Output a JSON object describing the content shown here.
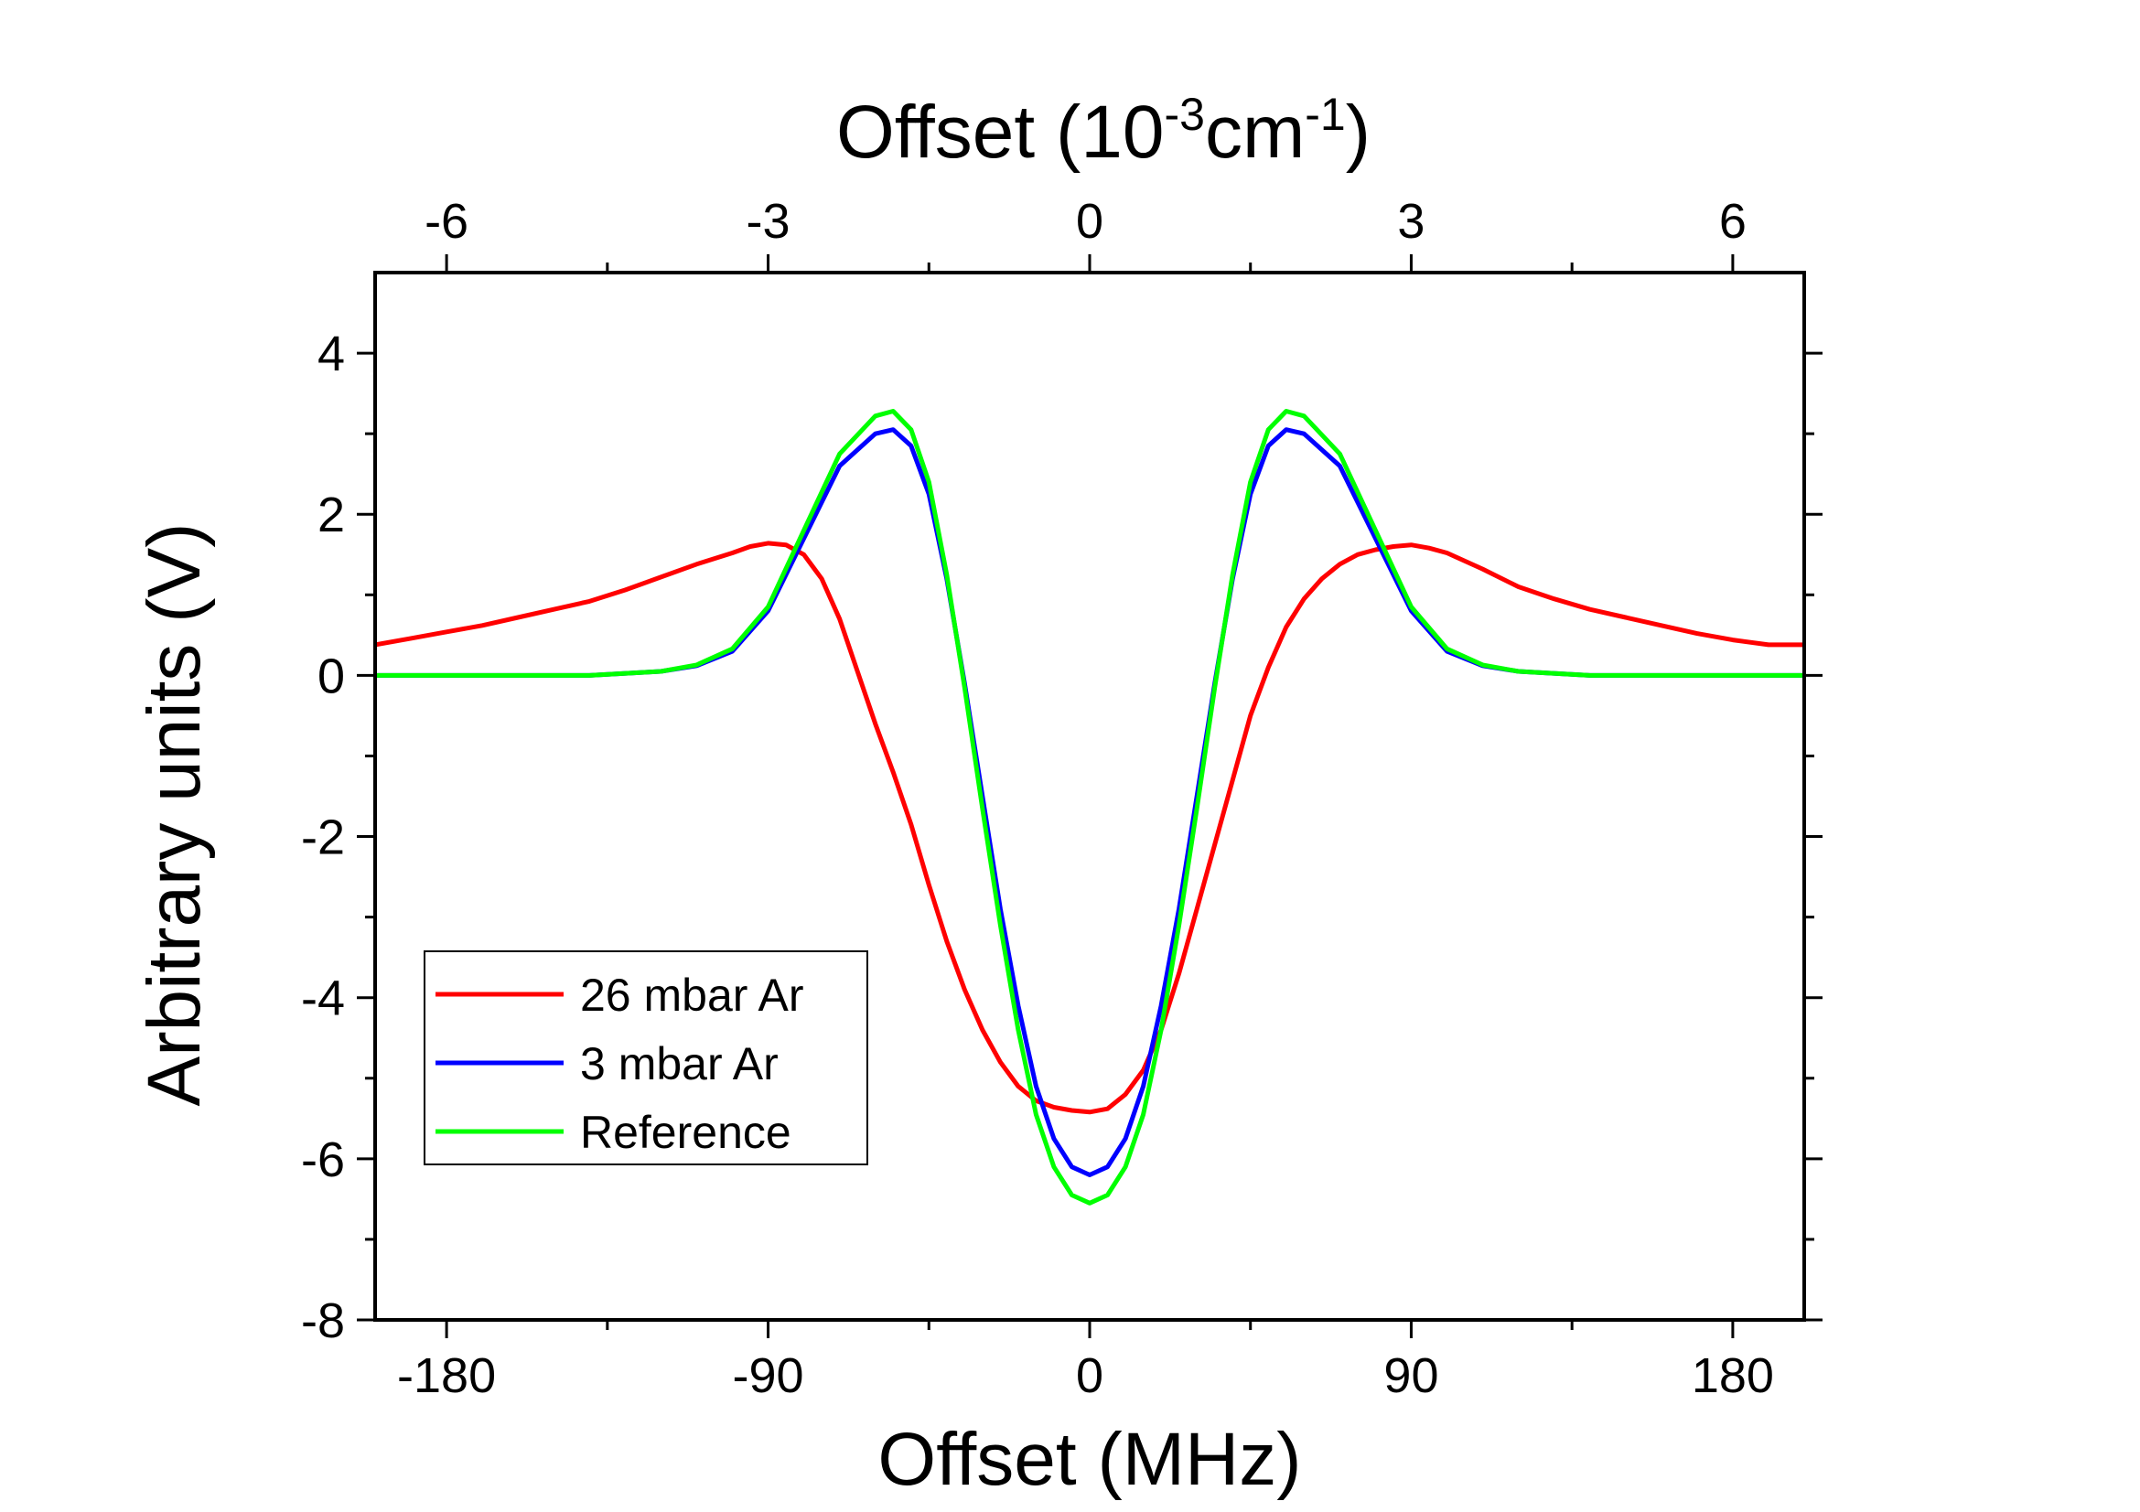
{
  "chart_data": {
    "type": "line",
    "xlabel": "Offset (MHz)",
    "top_xlabel": {
      "base": "Offset (10",
      "exp1": "-3",
      "mid": "cm",
      "exp2": "-1",
      "close": ")"
    },
    "ylabel": "Arbitrary units (V)",
    "xlim": [
      -200,
      200
    ],
    "ylim": [
      -8,
      5
    ],
    "x_ticks": [
      -180,
      -90,
      0,
      90,
      180
    ],
    "x_tick_labels": [
      "-180",
      "-90",
      "0",
      "90",
      "180"
    ],
    "x_minor_ticks": [
      -135,
      -45,
      45,
      135
    ],
    "top_x_ticks": [
      -6,
      -3,
      0,
      3,
      6
    ],
    "top_x_tick_labels": [
      "-6",
      "-3",
      "0",
      "3",
      "6"
    ],
    "top_x_minor_ticks": [
      -4.5,
      -1.5,
      1.5,
      4.5
    ],
    "y_ticks": [
      -8,
      -6,
      -4,
      -2,
      0,
      2,
      4
    ],
    "y_tick_labels": [
      "-8",
      "-6",
      "-4",
      "-2",
      "0",
      "2",
      "4"
    ],
    "y_minor_ticks": [
      -7,
      -5,
      -3,
      -1,
      1,
      3
    ],
    "legend_position": "bottom-left",
    "series": [
      {
        "name": "26 mbar Ar",
        "color": "#ff0000",
        "x": [
          -200,
          -190,
          -180,
          -170,
          -160,
          -150,
          -140,
          -130,
          -120,
          -110,
          -100,
          -95,
          -90,
          -85,
          -80,
          -75,
          -70,
          -65,
          -60,
          -55,
          -50,
          -45,
          -40,
          -35,
          -30,
          -25,
          -20,
          -15,
          -10,
          -5,
          0,
          5,
          10,
          15,
          20,
          25,
          30,
          35,
          40,
          45,
          50,
          55,
          60,
          65,
          70,
          75,
          80,
          85,
          90,
          95,
          100,
          110,
          120,
          130,
          140,
          150,
          160,
          170,
          180,
          190,
          200
        ],
        "y": [
          0.38,
          0.46,
          0.54,
          0.62,
          0.72,
          0.82,
          0.92,
          1.06,
          1.22,
          1.38,
          1.52,
          1.6,
          1.64,
          1.62,
          1.5,
          1.2,
          0.7,
          0.05,
          -0.6,
          -1.2,
          -1.85,
          -2.6,
          -3.3,
          -3.9,
          -4.4,
          -4.8,
          -5.1,
          -5.28,
          -5.36,
          -5.4,
          -5.42,
          -5.38,
          -5.2,
          -4.9,
          -4.4,
          -3.7,
          -2.9,
          -2.1,
          -1.3,
          -0.5,
          0.1,
          0.6,
          0.95,
          1.2,
          1.38,
          1.5,
          1.56,
          1.6,
          1.62,
          1.58,
          1.52,
          1.32,
          1.1,
          0.95,
          0.82,
          0.72,
          0.62,
          0.52,
          0.44,
          0.38,
          0.38
        ]
      },
      {
        "name": "3 mbar Ar",
        "color": "#0000ff",
        "x": [
          -200,
          -160,
          -140,
          -120,
          -110,
          -100,
          -90,
          -80,
          -70,
          -60,
          -55,
          -50,
          -45,
          -40,
          -35,
          -30,
          -25,
          -20,
          -15,
          -10,
          -5,
          0,
          5,
          10,
          15,
          20,
          25,
          30,
          35,
          40,
          45,
          50,
          55,
          60,
          70,
          80,
          90,
          100,
          110,
          120,
          140,
          160,
          200
        ],
        "y": [
          0,
          0,
          0,
          0.05,
          0.12,
          0.3,
          0.8,
          1.7,
          2.6,
          3.0,
          3.05,
          2.85,
          2.25,
          1.2,
          -0.1,
          -1.5,
          -2.9,
          -4.1,
          -5.1,
          -5.75,
          -6.1,
          -6.2,
          -6.1,
          -5.75,
          -5.1,
          -4.1,
          -2.9,
          -1.5,
          -0.1,
          1.2,
          2.25,
          2.85,
          3.05,
          3.0,
          2.6,
          1.7,
          0.8,
          0.3,
          0.12,
          0.05,
          0,
          0,
          0
        ]
      },
      {
        "name": "Reference",
        "color": "#00ff00",
        "x": [
          -200,
          -160,
          -140,
          -120,
          -110,
          -100,
          -90,
          -80,
          -70,
          -60,
          -55,
          -50,
          -45,
          -40,
          -35,
          -30,
          -25,
          -20,
          -15,
          -10,
          -5,
          0,
          5,
          10,
          15,
          20,
          25,
          30,
          35,
          40,
          45,
          50,
          55,
          60,
          70,
          80,
          90,
          100,
          110,
          120,
          140,
          160,
          200
        ],
        "y": [
          0,
          0,
          0,
          0.05,
          0.13,
          0.33,
          0.85,
          1.8,
          2.75,
          3.22,
          3.28,
          3.05,
          2.4,
          1.25,
          -0.15,
          -1.65,
          -3.1,
          -4.4,
          -5.45,
          -6.1,
          -6.45,
          -6.55,
          -6.45,
          -6.1,
          -5.45,
          -4.4,
          -3.1,
          -1.65,
          -0.15,
          1.25,
          2.4,
          3.05,
          3.28,
          3.22,
          2.75,
          1.8,
          0.85,
          0.33,
          0.13,
          0.05,
          0,
          0,
          0
        ]
      }
    ]
  }
}
